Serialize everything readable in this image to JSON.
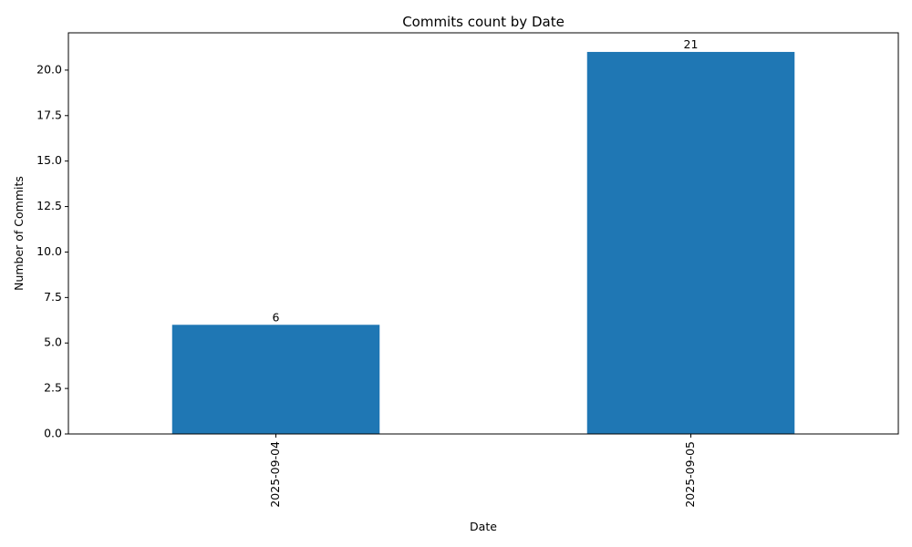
{
  "chart_data": {
    "type": "bar",
    "title": "Commits count by Date",
    "xlabel": "Date",
    "ylabel": "Number of Commits",
    "categories": [
      "2025-09-04",
      "2025-09-05"
    ],
    "values": [
      6,
      21
    ],
    "data_labels": [
      "6",
      "21"
    ],
    "ylim": [
      0,
      22.05
    ],
    "yticks": [
      0.0,
      2.5,
      5.0,
      7.5,
      10.0,
      12.5,
      15.0,
      17.5,
      20.0
    ],
    "ytick_labels": [
      "0.0",
      "2.5",
      "5.0",
      "7.5",
      "10.0",
      "12.5",
      "15.0",
      "17.5",
      "20.0"
    ],
    "bar_color": "#1f77b4",
    "grid": false,
    "legend": "none",
    "xtick_rotation": "vertical"
  }
}
